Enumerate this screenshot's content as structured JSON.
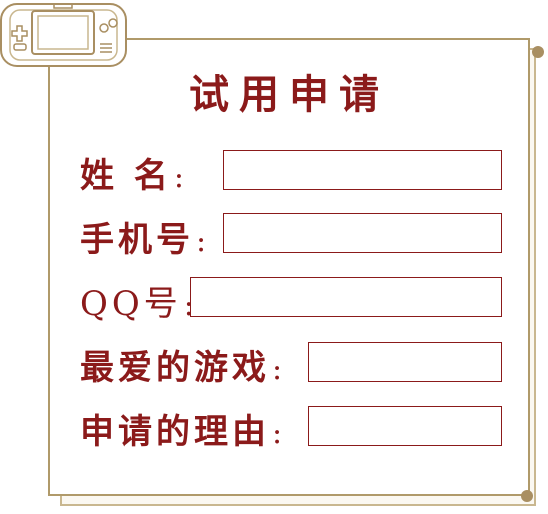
{
  "form": {
    "title": "试用申请",
    "fields": [
      {
        "label": "姓 名",
        "colon": ":",
        "value": ""
      },
      {
        "label": "手机号",
        "colon": ":",
        "value": ""
      },
      {
        "label": "QQ号",
        "colon": ":",
        "value": ""
      },
      {
        "label": "最爱的游戏",
        "colon": ":",
        "value": ""
      },
      {
        "label": "申请的理由",
        "colon": ":",
        "value": ""
      }
    ]
  },
  "colors": {
    "accent": "#8b1a1a",
    "frame": "#b09a6a",
    "frame_light": "#c9b78f"
  },
  "icons": {
    "corner_device": "handheld-console-icon"
  }
}
